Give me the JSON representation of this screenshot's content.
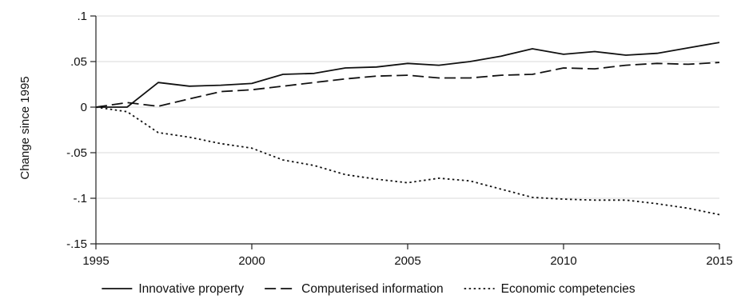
{
  "chart_data": {
    "type": "line",
    "title": "",
    "xlabel": "",
    "ylabel": "Change since 1995",
    "xlim": [
      1995,
      2015
    ],
    "ylim": [
      -0.15,
      0.1
    ],
    "x_ticks": [
      1995,
      2000,
      2005,
      2010,
      2015
    ],
    "x_tick_labels": [
      "1995",
      "2000",
      "2005",
      "2010",
      "2015"
    ],
    "y_ticks": [
      0.1,
      0.05,
      0,
      -0.05,
      -0.1,
      -0.15
    ],
    "y_tick_labels": [
      ".1",
      ".05",
      "0",
      "-.05",
      "-.1",
      "-.15"
    ],
    "grid": true,
    "legend_position": "bottom",
    "x": [
      1995,
      1996,
      1997,
      1998,
      1999,
      2000,
      2001,
      2002,
      2003,
      2004,
      2005,
      2006,
      2007,
      2008,
      2009,
      2010,
      2011,
      2012,
      2013,
      2014,
      2015
    ],
    "series": [
      {
        "name": "Innovative property",
        "dash": "solid",
        "values": [
          0,
          0,
          0.027,
          0.023,
          0.024,
          0.026,
          0.036,
          0.037,
          0.043,
          0.044,
          0.048,
          0.046,
          0.05,
          0.056,
          0.064,
          0.058,
          0.061,
          0.057,
          0.059,
          0.065,
          0.071
        ]
      },
      {
        "name": "Computerised information",
        "dash": "dashed",
        "values": [
          0,
          0.005,
          0.001,
          0.009,
          0.017,
          0.019,
          0.023,
          0.027,
          0.031,
          0.034,
          0.035,
          0.032,
          0.032,
          0.035,
          0.036,
          0.043,
          0.042,
          0.046,
          0.048,
          0.047,
          0.049
        ]
      },
      {
        "name": "Economic competencies",
        "dash": "dotted",
        "values": [
          0,
          -0.005,
          -0.028,
          -0.033,
          -0.04,
          -0.045,
          -0.058,
          -0.064,
          -0.074,
          -0.079,
          -0.083,
          -0.078,
          -0.081,
          -0.09,
          -0.099,
          -0.101,
          -0.102,
          -0.102,
          -0.106,
          -0.111,
          -0.118
        ]
      }
    ]
  }
}
